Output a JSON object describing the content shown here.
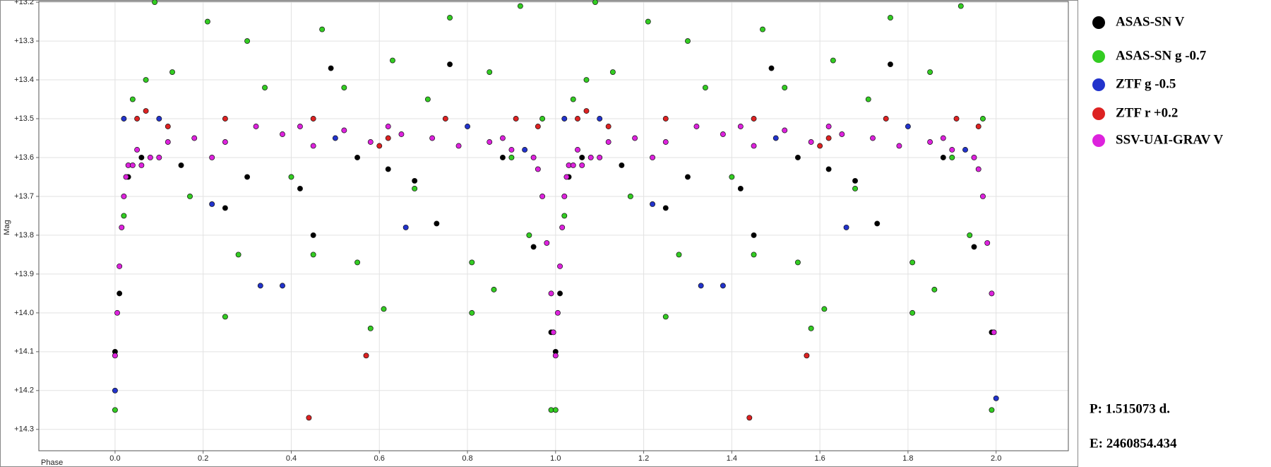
{
  "chart_data": {
    "type": "scatter",
    "x_label": "Phase",
    "y_label": "Mag",
    "annotations": [
      "P: 1.515073 d.",
      "E: 2460854.434"
    ],
    "xlim": [
      -0.173,
      2.164
    ],
    "xticks": [
      {
        "value": 0,
        "label": "0.0"
      },
      0.2,
      0.4,
      0.6,
      0.8,
      {
        "value": 1,
        "label": "1.0"
      },
      1.2,
      1.4,
      1.6,
      1.8,
      {
        "value": 2,
        "label": "2.0"
      }
    ],
    "ylim": [
      13.198,
      14.355
    ],
    "y_inverted": true,
    "yticks": [
      {
        "value": 13.2,
        "label": "+13.2"
      },
      {
        "value": 13.3,
        "label": "+13.3"
      },
      {
        "value": 13.4,
        "label": "+13.4"
      },
      {
        "value": 13.5,
        "label": "+13.5"
      },
      {
        "value": 13.6,
        "label": "+13.6"
      },
      {
        "value": 13.7,
        "label": "+13.7"
      },
      {
        "value": 13.8,
        "label": "+13.8"
      },
      {
        "value": 13.9,
        "label": "+13.9"
      },
      {
        "value": 14.0,
        "label": "+14.0"
      },
      {
        "value": 14.1,
        "label": "+14.1"
      },
      {
        "value": 14.2,
        "label": "+14.2"
      },
      {
        "value": 14.3,
        "label": "+14.3"
      }
    ],
    "grid": true,
    "series": [
      {
        "name": "ASAS-SN V",
        "color": "#000000",
        "x": [
          0.0,
          0.01,
          0.03,
          0.06,
          0.15,
          0.25,
          0.3,
          0.42,
          0.45,
          0.49,
          0.55,
          0.62,
          0.68,
          0.73,
          0.76,
          0.88,
          0.95,
          0.99,
          1.0,
          1.01,
          1.03,
          1.06,
          1.15,
          1.25,
          1.3,
          1.42,
          1.45,
          1.49,
          1.55,
          1.62,
          1.68,
          1.73,
          1.76,
          1.88,
          1.95,
          1.99
        ],
        "values": [
          14.1,
          13.95,
          13.65,
          13.6,
          13.62,
          13.73,
          13.65,
          13.68,
          13.8,
          13.37,
          13.6,
          13.63,
          13.66,
          13.77,
          13.36,
          13.6,
          13.83,
          14.05,
          14.1,
          13.95,
          13.65,
          13.6,
          13.62,
          13.73,
          13.65,
          13.68,
          13.8,
          13.37,
          13.6,
          13.63,
          13.66,
          13.77,
          13.36,
          13.6,
          13.83,
          14.05
        ]
      },
      {
        "name": "ASAS-SN g -0.7",
        "color": "#33cc22",
        "x": [
          0.0,
          0.02,
          0.04,
          0.07,
          0.09,
          0.13,
          0.17,
          0.21,
          0.25,
          0.28,
          0.3,
          0.34,
          0.4,
          0.45,
          0.47,
          0.52,
          0.55,
          0.58,
          0.61,
          0.63,
          0.68,
          0.71,
          0.76,
          0.81,
          0.81,
          0.85,
          0.86,
          0.9,
          0.92,
          0.94,
          0.97,
          0.99,
          1.0,
          1.02,
          1.04,
          1.07,
          1.09,
          1.13,
          1.17,
          1.21,
          1.25,
          1.28,
          1.3,
          1.34,
          1.4,
          1.45,
          1.47,
          1.52,
          1.55,
          1.58,
          1.61,
          1.63,
          1.68,
          1.71,
          1.76,
          1.81,
          1.81,
          1.85,
          1.86,
          1.9,
          1.92,
          1.94,
          1.97,
          1.99
        ],
        "values": [
          14.25,
          13.75,
          13.45,
          13.4,
          13.2,
          13.38,
          13.7,
          13.25,
          14.01,
          13.85,
          13.3,
          13.42,
          13.65,
          13.85,
          13.27,
          13.42,
          13.87,
          14.04,
          13.99,
          13.35,
          13.68,
          13.45,
          13.24,
          13.87,
          14.0,
          13.38,
          13.94,
          13.6,
          13.21,
          13.8,
          13.5,
          14.25,
          14.25,
          13.75,
          13.45,
          13.4,
          13.2,
          13.38,
          13.7,
          13.25,
          14.01,
          13.85,
          13.3,
          13.42,
          13.65,
          13.85,
          13.27,
          13.42,
          13.87,
          14.04,
          13.99,
          13.35,
          13.68,
          13.45,
          13.24,
          13.87,
          14.0,
          13.38,
          13.94,
          13.6,
          13.21,
          13.8,
          13.5,
          14.25
        ]
      },
      {
        "name": "ZTF g -0.5",
        "color": "#2233cc",
        "x": [
          0.0,
          0.02,
          0.1,
          0.22,
          0.33,
          0.38,
          0.5,
          0.66,
          0.8,
          0.93,
          1.02,
          1.1,
          1.22,
          1.33,
          1.38,
          1.5,
          1.66,
          1.8,
          1.93,
          2.0
        ],
        "values": [
          14.2,
          13.5,
          13.5,
          13.72,
          13.93,
          13.93,
          13.55,
          13.78,
          13.52,
          13.58,
          13.5,
          13.5,
          13.72,
          13.93,
          13.93,
          13.55,
          13.78,
          13.52,
          13.58,
          14.22
        ]
      },
      {
        "name": "ZTF r +0.2",
        "color": "#dd2222",
        "x": [
          0.05,
          0.07,
          0.12,
          0.25,
          0.44,
          0.45,
          0.57,
          0.6,
          0.62,
          0.75,
          0.91,
          0.96,
          1.05,
          1.07,
          1.12,
          1.25,
          1.44,
          1.45,
          1.57,
          1.6,
          1.62,
          1.75,
          1.91,
          1.96
        ],
        "values": [
          13.5,
          13.48,
          13.52,
          13.5,
          14.27,
          13.5,
          14.11,
          13.57,
          13.55,
          13.5,
          13.5,
          13.52,
          13.5,
          13.48,
          13.52,
          13.5,
          14.27,
          13.5,
          14.11,
          13.57,
          13.55,
          13.5,
          13.5,
          13.52
        ]
      },
      {
        "name": "SSV-UAI-GRAV V",
        "color": "#dd22dd",
        "x": [
          0.0,
          0.005,
          0.01,
          0.015,
          0.02,
          0.025,
          0.03,
          0.04,
          0.05,
          0.06,
          0.08,
          0.1,
          0.12,
          0.18,
          0.22,
          0.25,
          0.32,
          0.38,
          0.42,
          0.45,
          0.52,
          0.58,
          0.62,
          0.65,
          0.72,
          0.78,
          0.85,
          0.88,
          0.9,
          0.95,
          0.96,
          0.97,
          0.98,
          0.99,
          0.995,
          1.0,
          1.005,
          1.01,
          1.015,
          1.02,
          1.025,
          1.03,
          1.04,
          1.05,
          1.06,
          1.08,
          1.1,
          1.12,
          1.18,
          1.22,
          1.25,
          1.32,
          1.38,
          1.42,
          1.45,
          1.52,
          1.58,
          1.62,
          1.65,
          1.72,
          1.78,
          1.85,
          1.88,
          1.9,
          1.95,
          1.96,
          1.97,
          1.98,
          1.99,
          1.995
        ],
        "values": [
          14.11,
          14.0,
          13.88,
          13.78,
          13.7,
          13.65,
          13.62,
          13.62,
          13.58,
          13.62,
          13.6,
          13.6,
          13.56,
          13.55,
          13.6,
          13.56,
          13.52,
          13.54,
          13.52,
          13.57,
          13.53,
          13.56,
          13.52,
          13.54,
          13.55,
          13.57,
          13.56,
          13.55,
          13.58,
          13.6,
          13.63,
          13.7,
          13.82,
          13.95,
          14.05,
          14.11,
          14.0,
          13.88,
          13.78,
          13.7,
          13.65,
          13.62,
          13.62,
          13.58,
          13.62,
          13.6,
          13.6,
          13.56,
          13.55,
          13.6,
          13.56,
          13.52,
          13.54,
          13.52,
          13.57,
          13.53,
          13.56,
          13.52,
          13.54,
          13.55,
          13.57,
          13.56,
          13.55,
          13.58,
          13.6,
          13.63,
          13.7,
          13.82,
          13.95,
          14.05
        ]
      }
    ]
  }
}
